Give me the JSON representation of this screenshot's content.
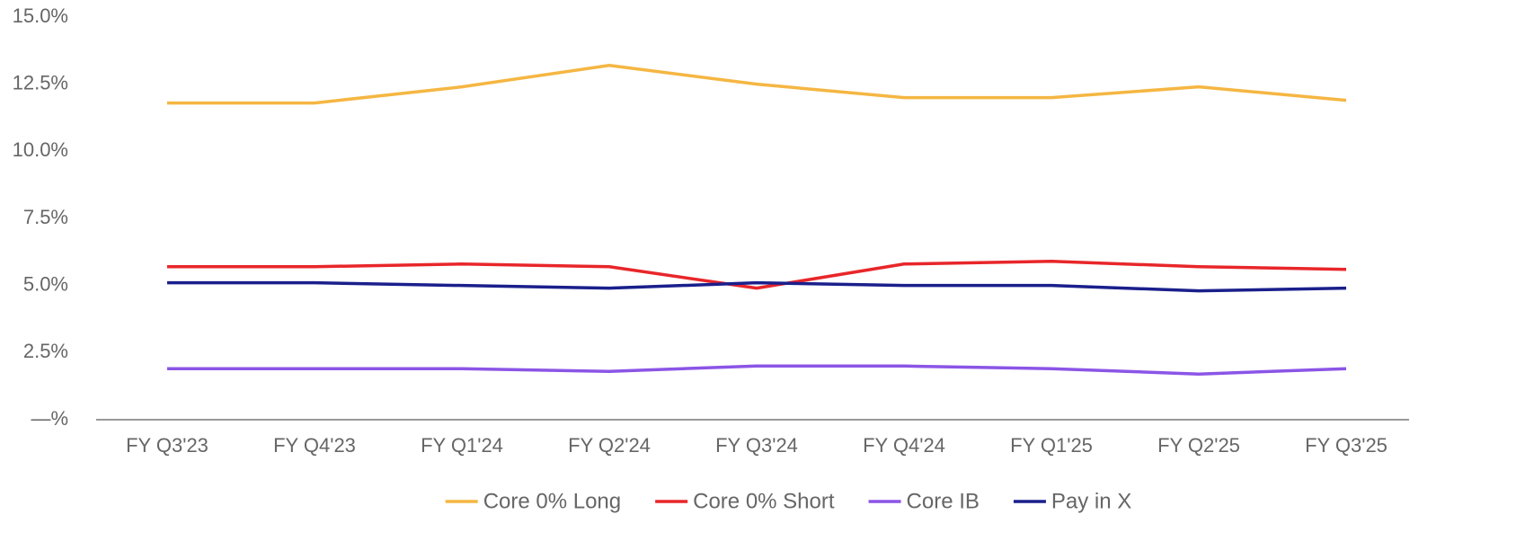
{
  "chart_data": {
    "type": "line",
    "categories": [
      "FY Q3'23",
      "FY Q4'23",
      "FY Q1'24",
      "FY Q2'24",
      "FY Q3'24",
      "FY Q4'24",
      "FY Q1'25",
      "FY Q2'25",
      "FY Q3'25"
    ],
    "series": [
      {
        "name": "Core 0% Long",
        "color": "#f5b642",
        "values": [
          11.8,
          11.8,
          12.4,
          13.2,
          12.5,
          12.0,
          12.0,
          12.4,
          11.9
        ]
      },
      {
        "name": "Core 0% Short",
        "color": "#e8262a",
        "values": [
          5.7,
          5.7,
          5.8,
          5.7,
          4.9,
          5.8,
          5.9,
          5.7,
          5.6
        ]
      },
      {
        "name": "Core IB",
        "color": "#8b55e6",
        "values": [
          1.9,
          1.9,
          1.9,
          1.8,
          2.0,
          2.0,
          1.9,
          1.7,
          1.9
        ]
      },
      {
        "name": "Pay in X",
        "color": "#1a1f8c",
        "values": [
          5.1,
          5.1,
          5.0,
          4.9,
          5.1,
          5.0,
          5.0,
          4.8,
          4.9
        ]
      }
    ],
    "ylim": [
      0,
      15
    ],
    "yticks": [
      {
        "value": 0,
        "label": "—%"
      },
      {
        "value": 2.5,
        "label": "2.5%"
      },
      {
        "value": 5,
        "label": "5.0%"
      },
      {
        "value": 7.5,
        "label": "7.5%"
      },
      {
        "value": 10,
        "label": "10.0%"
      },
      {
        "value": 12.5,
        "label": "12.5%"
      },
      {
        "value": 15,
        "label": "15.0%"
      }
    ],
    "grid": false,
    "legend": "bottom"
  }
}
